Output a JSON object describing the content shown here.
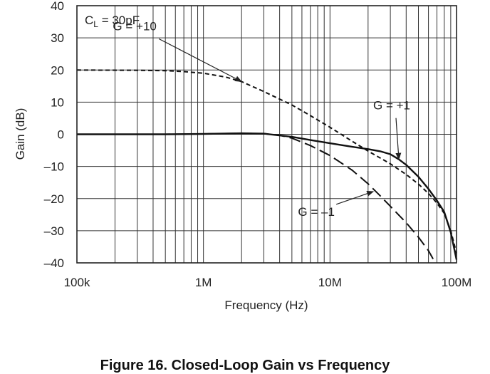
{
  "caption": "Figure 16. Closed-Loop Gain vs Frequency",
  "chart_data": {
    "type": "line",
    "title": "",
    "xlabel": "Frequency (Hz)",
    "ylabel": "Gain (dB)",
    "x_scale": "log",
    "xlim": [
      100000,
      100000000
    ],
    "ylim": [
      -40,
      40
    ],
    "grid": true,
    "x_ticks": [
      {
        "value": 100000,
        "label": "100k"
      },
      {
        "value": 1000000,
        "label": "1M"
      },
      {
        "value": 10000000,
        "label": "10M"
      },
      {
        "value": 100000000,
        "label": "100M"
      }
    ],
    "y_ticks": [
      {
        "value": 40,
        "label": "40"
      },
      {
        "value": 30,
        "label": "30"
      },
      {
        "value": 20,
        "label": "20"
      },
      {
        "value": 10,
        "label": "10"
      },
      {
        "value": 0,
        "label": "0"
      },
      {
        "value": -10,
        "label": "–10"
      },
      {
        "value": -20,
        "label": "–20"
      },
      {
        "value": -30,
        "label": "–30"
      },
      {
        "value": -40,
        "label": "–40"
      }
    ],
    "condition": {
      "prefix": "C",
      "subscript": "L",
      "suffix": " = 30pF"
    },
    "series": [
      {
        "name": "G = +10",
        "style": "short-dash",
        "x": [
          100000,
          300000,
          500000,
          700000,
          1000000,
          1500000,
          2000000,
          3000000,
          5000000,
          7000000,
          10000000,
          15000000,
          20000000,
          30000000,
          40000000,
          50000000,
          60000000,
          70000000,
          80000000,
          90000000,
          100000000
        ],
        "y": [
          20,
          19.9,
          19.8,
          19.5,
          19,
          17.8,
          16.4,
          13.3,
          9.1,
          5.8,
          2.2,
          -2.2,
          -5.2,
          -9.2,
          -12.5,
          -15.5,
          -18.4,
          -21.4,
          -24.6,
          -30,
          -37
        ]
      },
      {
        "name": "G = +1",
        "style": "solid",
        "x": [
          100000,
          500000,
          1000000,
          2000000,
          3000000,
          5000000,
          7000000,
          10000000,
          15000000,
          20000000,
          25000000,
          30000000,
          35000000,
          40000000,
          50000000,
          60000000,
          70000000,
          80000000,
          90000000,
          100000000
        ],
        "y": [
          0,
          0,
          0.1,
          0.3,
          0.2,
          -0.8,
          -1.8,
          -2.8,
          -3.9,
          -4.6,
          -5.3,
          -6.2,
          -7.8,
          -9.5,
          -13.2,
          -17,
          -20.6,
          -24.2,
          -30.5,
          -39
        ]
      },
      {
        "name": "G = –1",
        "style": "long-dash",
        "x": [
          100000,
          500000,
          1000000,
          2000000,
          3000000,
          4000000,
          5000000,
          7000000,
          10000000,
          15000000,
          20000000,
          25000000,
          30000000,
          40000000,
          50000000,
          60000000,
          68000000
        ],
        "y": [
          0,
          0,
          0.1,
          0.3,
          0.2,
          -0.3,
          -1.2,
          -3.5,
          -6.6,
          -11.2,
          -15.4,
          -19.2,
          -22.4,
          -27.5,
          -32,
          -36.2,
          -40
        ]
      }
    ],
    "annotations": [
      {
        "text": "G = +10",
        "series": "G = +10",
        "arrow_at": [
          2000000,
          16.4
        ]
      },
      {
        "text": "G = +1",
        "series": "G = +1",
        "arrow_at": [
          35000000,
          -7.8
        ]
      },
      {
        "text": "G = –1",
        "series": "G = –1",
        "arrow_at": [
          22000000,
          -17.8
        ]
      }
    ]
  }
}
